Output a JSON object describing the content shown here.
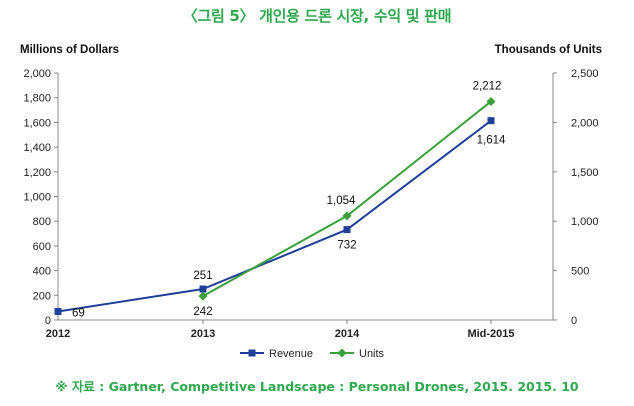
{
  "title": "〈그림 5〉 개인용 드론 시장, 수익 및 판매",
  "source": "※ 자료 : Gartner, Competitive Landscape : Personal Drones, 2015. 2015. 10",
  "chart_data": {
    "type": "line",
    "categories": [
      "2012",
      "2013",
      "2014",
      "Mid-2015"
    ],
    "series": [
      {
        "name": "Revenue",
        "axis": "left",
        "values": [
          69,
          251,
          732,
          1614
        ],
        "labels": [
          "69",
          "251",
          "732",
          "1,614"
        ],
        "color": "#1f3f99",
        "marker": "square"
      },
      {
        "name": "Units",
        "axis": "right",
        "values": [
          null,
          242,
          1054,
          2212
        ],
        "labels": [
          "",
          "242",
          "1,054",
          "2,212"
        ],
        "color": "#3aa13a",
        "marker": "diamond"
      }
    ],
    "ylabel_left": "Millions of Dollars",
    "ylabel_right": "Thousands of Units",
    "ylim_left": [
      0,
      2000
    ],
    "ylim_right": [
      0,
      2500
    ],
    "yticks_left": [
      "0",
      "200",
      "400",
      "600",
      "800",
      "1,000",
      "1,200",
      "1,400",
      "1,600",
      "1,800",
      "2,000"
    ],
    "yticks_right": [
      "0",
      "500",
      "1,000",
      "1,500",
      "2,000",
      "2,500"
    ],
    "grid": false,
    "legend": "bottom"
  }
}
